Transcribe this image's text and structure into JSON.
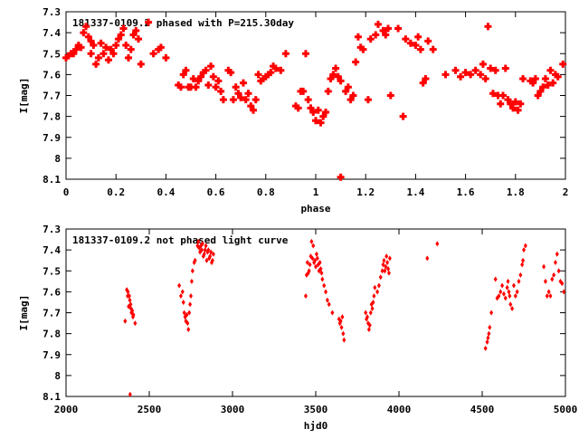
{
  "chart_data": [
    {
      "type": "scatter",
      "title": "181337-0109.2 phased with P=215.30day",
      "xlabel": "phase",
      "ylabel": "I[mag]",
      "xlim": [
        0,
        2
      ],
      "ylim": [
        8.1,
        7.3
      ],
      "y_inverted": true,
      "grid": false,
      "legend": "none",
      "marker_color": "#ff0000",
      "marker": "filled-cross",
      "x_ticks": [
        0,
        0.2,
        0.4,
        0.6,
        0.8,
        1,
        1.2,
        1.4,
        1.6,
        1.8,
        2
      ],
      "x_tick_labels": [
        "0",
        "0.2",
        "0.4",
        "0.6",
        "0.8",
        "1",
        "1.2",
        "1.4",
        "1.6",
        "1.8",
        "2"
      ],
      "y_ticks": [
        7.3,
        7.4,
        7.5,
        7.6,
        7.7,
        7.8,
        7.9,
        8,
        8.1
      ],
      "y_tick_labels": [
        "7.3",
        "7.4",
        "7.5",
        "7.6",
        "7.7",
        "7.8",
        "7.9",
        "8",
        "8.1"
      ],
      "points": [
        [
          0.0,
          7.52
        ],
        [
          0.01,
          7.51
        ],
        [
          0.02,
          7.5
        ],
        [
          0.03,
          7.5
        ],
        [
          0.04,
          7.48
        ],
        [
          0.05,
          7.46
        ],
        [
          0.06,
          7.47
        ],
        [
          0.07,
          7.4
        ],
        [
          0.08,
          7.37
        ],
        [
          0.09,
          7.42
        ],
        [
          0.1,
          7.44
        ],
        [
          0.1,
          7.5
        ],
        [
          0.11,
          7.46
        ],
        [
          0.12,
          7.55
        ],
        [
          0.13,
          7.52
        ],
        [
          0.14,
          7.45
        ],
        [
          0.15,
          7.5
        ],
        [
          0.16,
          7.47
        ],
        [
          0.17,
          7.53
        ],
        [
          0.18,
          7.48
        ],
        [
          0.19,
          7.5
        ],
        [
          0.2,
          7.46
        ],
        [
          0.21,
          7.43
        ],
        [
          0.22,
          7.41
        ],
        [
          0.23,
          7.38
        ],
        [
          0.24,
          7.46
        ],
        [
          0.25,
          7.52
        ],
        [
          0.26,
          7.48
        ],
        [
          0.27,
          7.41
        ],
        [
          0.28,
          7.39
        ],
        [
          0.29,
          7.43
        ],
        [
          0.3,
          7.55
        ],
        [
          0.33,
          7.35
        ],
        [
          0.35,
          7.5
        ],
        [
          0.37,
          7.48
        ],
        [
          0.38,
          7.47
        ],
        [
          0.4,
          7.52
        ],
        [
          0.45,
          7.65
        ],
        [
          0.46,
          7.66
        ],
        [
          0.47,
          7.6
        ],
        [
          0.48,
          7.58
        ],
        [
          0.49,
          7.66
        ],
        [
          0.5,
          7.66
        ],
        [
          0.51,
          7.62
        ],
        [
          0.52,
          7.66
        ],
        [
          0.53,
          7.63
        ],
        [
          0.54,
          7.61
        ],
        [
          0.55,
          7.59
        ],
        [
          0.56,
          7.58
        ],
        [
          0.57,
          7.65
        ],
        [
          0.58,
          7.56
        ],
        [
          0.59,
          7.61
        ],
        [
          0.6,
          7.66
        ],
        [
          0.61,
          7.63
        ],
        [
          0.62,
          7.68
        ],
        [
          0.63,
          7.72
        ],
        [
          0.65,
          7.58
        ],
        [
          0.66,
          7.59
        ],
        [
          0.67,
          7.72
        ],
        [
          0.68,
          7.66
        ],
        [
          0.69,
          7.69
        ],
        [
          0.7,
          7.71
        ],
        [
          0.71,
          7.64
        ],
        [
          0.72,
          7.72
        ],
        [
          0.73,
          7.69
        ],
        [
          0.74,
          7.75
        ],
        [
          0.75,
          7.77
        ],
        [
          0.76,
          7.72
        ],
        [
          0.77,
          7.6
        ],
        [
          0.78,
          7.63
        ],
        [
          0.79,
          7.62
        ],
        [
          0.8,
          7.61
        ],
        [
          0.81,
          7.6
        ],
        [
          0.82,
          7.59
        ],
        [
          0.83,
          7.56
        ],
        [
          0.84,
          7.57
        ],
        [
          0.86,
          7.58
        ],
        [
          0.88,
          7.5
        ],
        [
          0.92,
          7.75
        ],
        [
          0.93,
          7.76
        ],
        [
          0.94,
          7.68
        ],
        [
          0.95,
          7.68
        ],
        [
          0.96,
          7.5
        ],
        [
          0.97,
          7.72
        ],
        [
          0.98,
          7.76
        ],
        [
          0.99,
          7.78
        ],
        [
          1.0,
          7.82
        ],
        [
          1.01,
          7.77
        ],
        [
          1.02,
          7.83
        ],
        [
          1.03,
          7.8
        ],
        [
          1.04,
          7.78
        ],
        [
          1.05,
          7.68
        ],
        [
          1.06,
          7.62
        ],
        [
          1.07,
          7.6
        ],
        [
          1.08,
          7.57
        ],
        [
          1.09,
          7.61
        ],
        [
          1.1,
          7.63
        ],
        [
          1.1,
          8.09
        ],
        [
          1.12,
          7.68
        ],
        [
          1.13,
          7.66
        ],
        [
          1.14,
          7.72
        ],
        [
          1.15,
          7.7
        ],
        [
          1.16,
          7.54
        ],
        [
          1.17,
          7.42
        ],
        [
          1.18,
          7.47
        ],
        [
          1.19,
          7.48
        ],
        [
          1.21,
          7.72
        ],
        [
          1.22,
          7.43
        ],
        [
          1.24,
          7.41
        ],
        [
          1.25,
          7.36
        ],
        [
          1.27,
          7.39
        ],
        [
          1.28,
          7.41
        ],
        [
          1.29,
          7.38
        ],
        [
          1.3,
          7.7
        ],
        [
          1.33,
          7.38
        ],
        [
          1.35,
          7.8
        ],
        [
          1.36,
          7.43
        ],
        [
          1.38,
          7.45
        ],
        [
          1.4,
          7.46
        ],
        [
          1.41,
          7.42
        ],
        [
          1.42,
          7.48
        ],
        [
          1.43,
          7.64
        ],
        [
          1.44,
          7.62
        ],
        [
          1.45,
          7.44
        ],
        [
          1.47,
          7.48
        ],
        [
          1.52,
          7.6
        ],
        [
          1.56,
          7.58
        ],
        [
          1.58,
          7.61
        ],
        [
          1.6,
          7.59
        ],
        [
          1.62,
          7.6
        ],
        [
          1.64,
          7.58
        ],
        [
          1.66,
          7.6
        ],
        [
          1.67,
          7.55
        ],
        [
          1.68,
          7.62
        ],
        [
          1.69,
          7.37
        ],
        [
          1.7,
          7.57
        ],
        [
          1.71,
          7.69
        ],
        [
          1.72,
          7.58
        ],
        [
          1.73,
          7.7
        ],
        [
          1.74,
          7.74
        ],
        [
          1.75,
          7.7
        ],
        [
          1.76,
          7.57
        ],
        [
          1.77,
          7.72
        ],
        [
          1.78,
          7.74
        ],
        [
          1.79,
          7.76
        ],
        [
          1.8,
          7.73
        ],
        [
          1.81,
          7.77
        ],
        [
          1.82,
          7.74
        ],
        [
          1.83,
          7.62
        ],
        [
          1.86,
          7.63
        ],
        [
          1.87,
          7.64
        ],
        [
          1.88,
          7.62
        ],
        [
          1.89,
          7.7
        ],
        [
          1.9,
          7.68
        ],
        [
          1.91,
          7.66
        ],
        [
          1.92,
          7.62
        ],
        [
          1.93,
          7.65
        ],
        [
          1.94,
          7.58
        ],
        [
          1.95,
          7.64
        ],
        [
          1.96,
          7.6
        ],
        [
          1.97,
          7.61
        ],
        [
          1.99,
          7.55
        ]
      ]
    },
    {
      "type": "scatter",
      "title": "181337-0109.2 not phased light curve",
      "xlabel": "hjd0",
      "ylabel": "I[mag]",
      "xlim": [
        2000,
        5000
      ],
      "ylim": [
        8.1,
        7.3
      ],
      "y_inverted": true,
      "grid": false,
      "legend": "none",
      "marker_color": "#ff0000",
      "marker": "filled-diamond",
      "x_ticks": [
        2000,
        2500,
        3000,
        3500,
        4000,
        4500,
        5000
      ],
      "x_tick_labels": [
        "2000",
        "2500",
        "3000",
        "3500",
        "4000",
        "4500",
        "5000"
      ],
      "y_ticks": [
        7.3,
        7.4,
        7.5,
        7.6,
        7.7,
        7.8,
        7.9,
        8,
        8.1
      ],
      "y_tick_labels": [
        "7.3",
        "7.4",
        "7.5",
        "7.6",
        "7.7",
        "7.8",
        "7.9",
        "8",
        "8.1"
      ],
      "points": [
        [
          2355,
          7.74
        ],
        [
          2365,
          7.59
        ],
        [
          2370,
          7.62
        ],
        [
          2372,
          7.6
        ],
        [
          2376,
          7.67
        ],
        [
          2380,
          7.62
        ],
        [
          2383,
          7.64
        ],
        [
          2388,
          7.66
        ],
        [
          2390,
          7.68
        ],
        [
          2393,
          7.7
        ],
        [
          2398,
          7.69
        ],
        [
          2402,
          7.72
        ],
        [
          2405,
          7.71
        ],
        [
          2415,
          7.75
        ],
        [
          2385,
          8.09
        ],
        [
          2680,
          7.57
        ],
        [
          2690,
          7.62
        ],
        [
          2700,
          7.6
        ],
        [
          2705,
          7.65
        ],
        [
          2710,
          7.7
        ],
        [
          2715,
          7.72
        ],
        [
          2720,
          7.74
        ],
        [
          2725,
          7.71
        ],
        [
          2730,
          7.75
        ],
        [
          2735,
          7.78
        ],
        [
          2740,
          7.7
        ],
        [
          2745,
          7.66
        ],
        [
          2750,
          7.62
        ],
        [
          2755,
          7.55
        ],
        [
          2760,
          7.5
        ],
        [
          2770,
          7.46
        ],
        [
          2775,
          7.45
        ],
        [
          2790,
          7.38
        ],
        [
          2795,
          7.36
        ],
        [
          2800,
          7.39
        ],
        [
          2805,
          7.41
        ],
        [
          2810,
          7.38
        ],
        [
          2815,
          7.4
        ],
        [
          2820,
          7.37
        ],
        [
          2825,
          7.43
        ],
        [
          2830,
          7.42
        ],
        [
          2835,
          7.4
        ],
        [
          2840,
          7.38
        ],
        [
          2845,
          7.45
        ],
        [
          2850,
          7.41
        ],
        [
          2855,
          7.4
        ],
        [
          2860,
          7.44
        ],
        [
          2865,
          7.43
        ],
        [
          2870,
          7.41
        ],
        [
          2875,
          7.46
        ],
        [
          2880,
          7.45
        ],
        [
          2885,
          7.42
        ],
        [
          3440,
          7.62
        ],
        [
          3445,
          7.52
        ],
        [
          3450,
          7.46
        ],
        [
          3455,
          7.51
        ],
        [
          3460,
          7.5
        ],
        [
          3465,
          7.47
        ],
        [
          3470,
          7.43
        ],
        [
          3475,
          7.36
        ],
        [
          3480,
          7.44
        ],
        [
          3485,
          7.38
        ],
        [
          3490,
          7.46
        ],
        [
          3495,
          7.45
        ],
        [
          3500,
          7.48
        ],
        [
          3505,
          7.42
        ],
        [
          3510,
          7.44
        ],
        [
          3515,
          7.47
        ],
        [
          3520,
          7.5
        ],
        [
          3525,
          7.46
        ],
        [
          3530,
          7.49
        ],
        [
          3535,
          7.51
        ],
        [
          3540,
          7.54
        ],
        [
          3550,
          7.57
        ],
        [
          3560,
          7.6
        ],
        [
          3570,
          7.64
        ],
        [
          3580,
          7.66
        ],
        [
          3600,
          7.7
        ],
        [
          3640,
          7.73
        ],
        [
          3645,
          7.75
        ],
        [
          3650,
          7.74
        ],
        [
          3655,
          7.77
        ],
        [
          3660,
          7.72
        ],
        [
          3665,
          7.8
        ],
        [
          3670,
          7.83
        ],
        [
          3800,
          7.7
        ],
        [
          3805,
          7.73
        ],
        [
          3810,
          7.72
        ],
        [
          3815,
          7.75
        ],
        [
          3820,
          7.78
        ],
        [
          3825,
          7.76
        ],
        [
          3830,
          7.7
        ],
        [
          3835,
          7.66
        ],
        [
          3840,
          7.68
        ],
        [
          3845,
          7.65
        ],
        [
          3850,
          7.62
        ],
        [
          3855,
          7.58
        ],
        [
          3870,
          7.6
        ],
        [
          3880,
          7.57
        ],
        [
          3890,
          7.53
        ],
        [
          3900,
          7.5
        ],
        [
          3905,
          7.47
        ],
        [
          3910,
          7.45
        ],
        [
          3915,
          7.5
        ],
        [
          3920,
          7.48
        ],
        [
          3925,
          7.43
        ],
        [
          3930,
          7.46
        ],
        [
          3935,
          7.49
        ],
        [
          3940,
          7.51
        ],
        [
          3945,
          7.44
        ],
        [
          4170,
          7.44
        ],
        [
          4230,
          7.37
        ],
        [
          4520,
          7.87
        ],
        [
          4530,
          7.84
        ],
        [
          4535,
          7.82
        ],
        [
          4540,
          7.8
        ],
        [
          4545,
          7.77
        ],
        [
          4555,
          7.7
        ],
        [
          4580,
          7.54
        ],
        [
          4590,
          7.63
        ],
        [
          4600,
          7.62
        ],
        [
          4610,
          7.6
        ],
        [
          4620,
          7.57
        ],
        [
          4630,
          7.61
        ],
        [
          4640,
          7.63
        ],
        [
          4650,
          7.58
        ],
        [
          4655,
          7.55
        ],
        [
          4660,
          7.6
        ],
        [
          4665,
          7.62
        ],
        [
          4670,
          7.66
        ],
        [
          4680,
          7.68
        ],
        [
          4690,
          7.57
        ],
        [
          4700,
          7.62
        ],
        [
          4710,
          7.6
        ],
        [
          4720,
          7.55
        ],
        [
          4730,
          7.52
        ],
        [
          4740,
          7.47
        ],
        [
          4745,
          7.45
        ],
        [
          4750,
          7.4
        ],
        [
          4760,
          7.38
        ],
        [
          4870,
          7.48
        ],
        [
          4880,
          7.55
        ],
        [
          4890,
          7.62
        ],
        [
          4900,
          7.6
        ],
        [
          4910,
          7.62
        ],
        [
          4920,
          7.54
        ],
        [
          4930,
          7.52
        ],
        [
          4940,
          7.46
        ],
        [
          4950,
          7.42
        ],
        [
          4960,
          7.5
        ],
        [
          4970,
          7.55
        ],
        [
          4980,
          7.56
        ],
        [
          4990,
          7.6
        ]
      ]
    }
  ]
}
